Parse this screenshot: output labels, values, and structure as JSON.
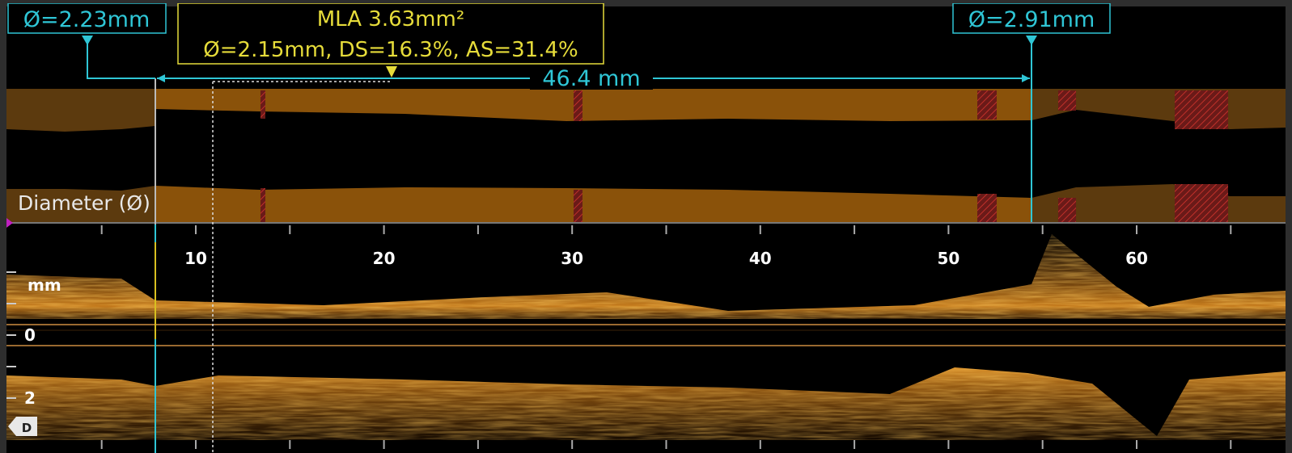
{
  "annotations": {
    "proximal_reference": "Ø=2.23mm",
    "mla_title": "MLA 3.63mm²",
    "mla_details": "Ø=2.15mm, DS=16.3%, AS=31.4%",
    "distal_reference": "Ø=2.91mm",
    "length": "46.4 mm"
  },
  "diameter_panel": {
    "label": "Diameter (Ø)"
  },
  "longitudinal_view": {
    "x_ticks": [
      "10",
      "20",
      "30",
      "40",
      "50",
      "60"
    ],
    "depth_unit": "mm",
    "depth_ticks": [
      "0",
      "2"
    ],
    "direction_marker": "D"
  }
}
